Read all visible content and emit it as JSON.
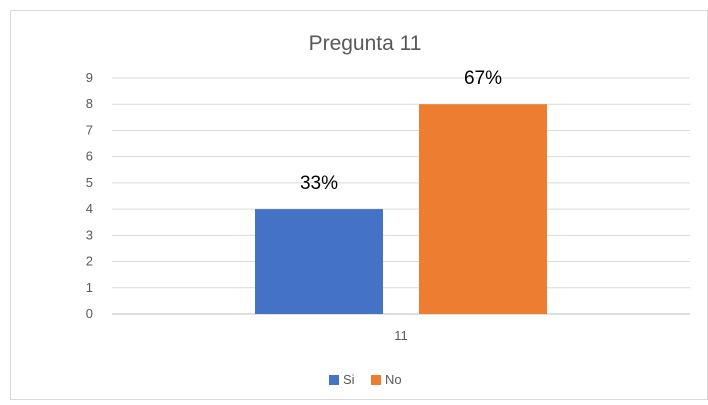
{
  "chart_data": {
    "type": "bar",
    "title": "Pregunta 11",
    "categories": [
      "11"
    ],
    "series": [
      {
        "name": "Si",
        "values": [
          4
        ],
        "label": "33%",
        "color": "#4472C4"
      },
      {
        "name": "No",
        "values": [
          8
        ],
        "label": "67%",
        "color": "#ED7D31"
      }
    ],
    "y_ticks": [
      "0",
      "1",
      "2",
      "3",
      "4",
      "5",
      "6",
      "7",
      "8",
      "9"
    ],
    "ylim": [
      0,
      9
    ],
    "grid": true,
    "legend_position": "bottom-center"
  }
}
